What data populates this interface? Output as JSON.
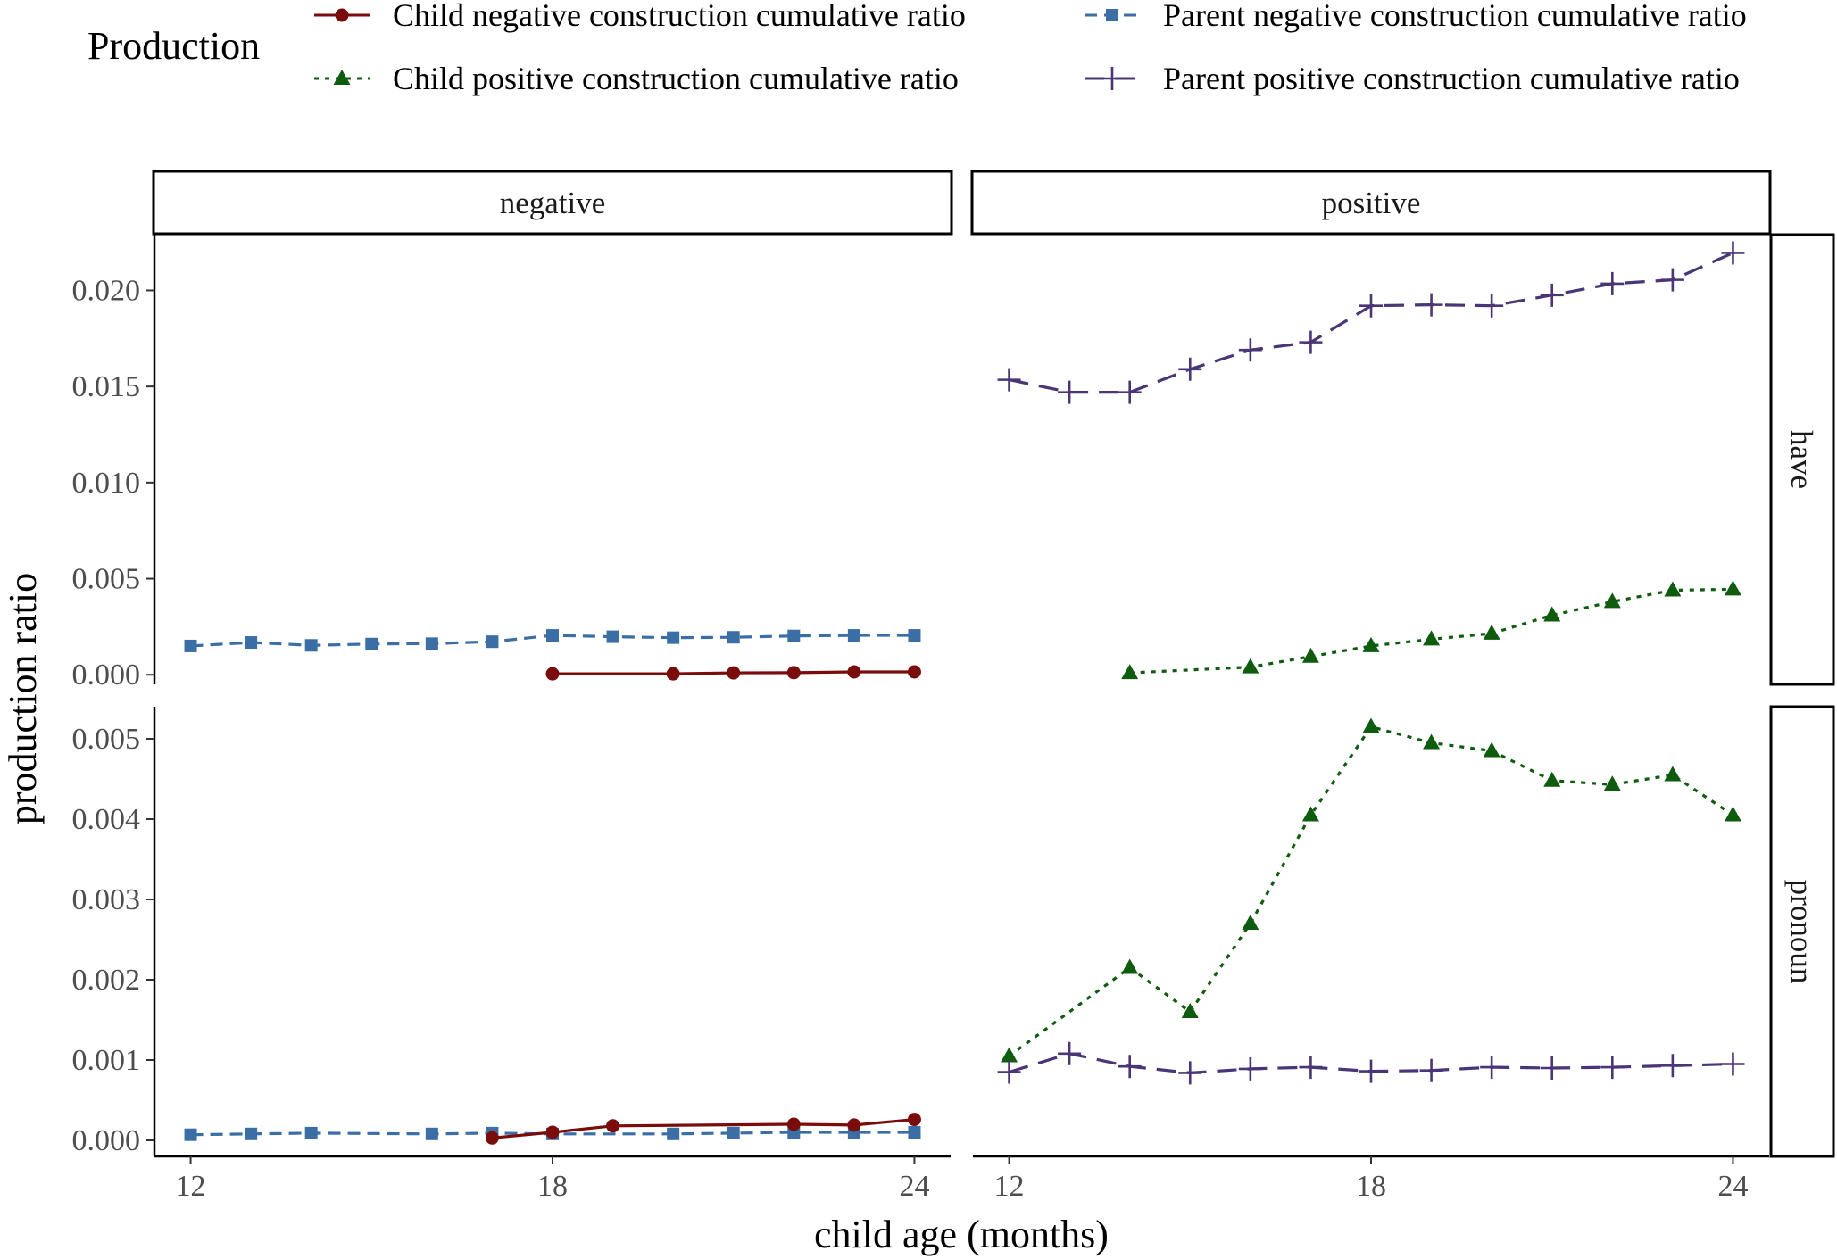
{
  "chart_data": {
    "type": "line",
    "legend": {
      "title": "Production",
      "placement": "top",
      "entries": [
        {
          "label": "Child negative construction cumulative ratio",
          "color": "#7b0c0c",
          "marker": "circle",
          "dash": "solid"
        },
        {
          "label": "Child positive construction cumulative ratio",
          "color": "#0f5c0f",
          "marker": "triangle",
          "dash": "dotted"
        },
        {
          "label": "Parent negative construction cumulative ratio",
          "color": "#3a6ea5",
          "marker": "square",
          "dash": "dashed"
        },
        {
          "label": "Parent positive construction cumulative ratio",
          "color": "#4a3577",
          "marker": "plus",
          "dash": "longdash"
        }
      ]
    },
    "xlabel": "child age (months)",
    "ylabel": "production ratio",
    "xlim": [
      11.4,
      24.6
    ],
    "xticks": [
      12,
      18,
      24
    ],
    "columns": [
      "negative",
      "positive"
    ],
    "rows": [
      {
        "label": "have",
        "ylim": [
          -0.0005,
          0.0229
        ],
        "yticks": [
          0.0,
          0.005,
          0.01,
          0.015,
          0.02
        ],
        "ytick_labels": [
          "0.000",
          "0.005",
          "0.010",
          "0.015",
          "0.020"
        ]
      },
      {
        "label": "pronoun",
        "ylim": [
          -0.0002,
          0.0054
        ],
        "yticks": [
          0.0,
          0.001,
          0.002,
          0.003,
          0.004,
          0.005
        ],
        "ytick_labels": [
          "0.000",
          "0.001",
          "0.002",
          "0.003",
          "0.004",
          "0.005"
        ]
      }
    ],
    "panels": [
      {
        "row": "have",
        "column": "negative",
        "series": [
          {
            "name": "Parent negative construction cumulative ratio",
            "x": [
              12,
              13,
              14,
              15,
              16,
              17,
              18,
              19,
              20,
              21,
              22,
              23,
              24
            ],
            "y": [
              0.0015,
              0.00168,
              0.00153,
              0.0016,
              0.00162,
              0.00172,
              0.00205,
              0.00198,
              0.00193,
              0.00195,
              0.00202,
              0.00205,
              0.00205
            ]
          },
          {
            "name": "Child negative construction cumulative ratio",
            "x": [
              18,
              20,
              21,
              22,
              23,
              24
            ],
            "y": [
              5e-05,
              5e-05,
              0.0001,
              0.00011,
              0.00015,
              0.00015
            ]
          }
        ]
      },
      {
        "row": "have",
        "column": "positive",
        "series": [
          {
            "name": "Parent positive construction cumulative ratio",
            "x": [
              12,
              13,
              14,
              15,
              16,
              17,
              18,
              19,
              20,
              21,
              22,
              23,
              24
            ],
            "y": [
              0.01535,
              0.0147,
              0.0147,
              0.0159,
              0.0169,
              0.0173,
              0.0192,
              0.01925,
              0.0192,
              0.01975,
              0.02035,
              0.02055,
              0.02195
            ]
          },
          {
            "name": "Child positive construction cumulative ratio",
            "x": [
              14,
              16,
              17,
              18,
              19,
              20,
              21,
              22,
              23,
              24
            ],
            "y": [
              0.0001,
              0.0004,
              0.00095,
              0.0015,
              0.00185,
              0.00215,
              0.0031,
              0.0038,
              0.0044,
              0.00445
            ]
          }
        ]
      },
      {
        "row": "pronoun",
        "column": "negative",
        "series": [
          {
            "name": "Parent negative construction cumulative ratio",
            "x": [
              12,
              13,
              14,
              16,
              17,
              18,
              20,
              21,
              22,
              23,
              24
            ],
            "y": [
              7e-05,
              8e-05,
              9e-05,
              8e-05,
              9e-05,
              8e-05,
              8e-05,
              9e-05,
              0.0001,
              0.0001,
              0.0001
            ]
          },
          {
            "name": "Child negative construction cumulative ratio",
            "x": [
              17,
              18,
              19,
              22,
              23,
              24
            ],
            "y": [
              3e-05,
              0.0001,
              0.00018,
              0.0002,
              0.00019,
              0.00026
            ]
          }
        ]
      },
      {
        "row": "pronoun",
        "column": "positive",
        "series": [
          {
            "name": "Child positive construction cumulative ratio",
            "x": [
              12,
              14,
              15,
              16,
              17,
              18,
              19,
              20,
              21,
              22,
              23,
              24
            ],
            "y": [
              0.00105,
              0.00215,
              0.0016,
              0.0027,
              0.00405,
              0.00515,
              0.00495,
              0.00485,
              0.00448,
              0.00443,
              0.00455,
              0.00405
            ]
          },
          {
            "name": "Parent positive construction cumulative ratio",
            "x": [
              12,
              13,
              14,
              15,
              16,
              17,
              18,
              19,
              20,
              21,
              22,
              23,
              24
            ],
            "y": [
              0.00085,
              0.00108,
              0.00092,
              0.00084,
              0.00089,
              0.00091,
              0.00086,
              0.00087,
              0.00091,
              0.0009,
              0.00091,
              0.00093,
              0.00095
            ]
          }
        ]
      }
    ]
  }
}
